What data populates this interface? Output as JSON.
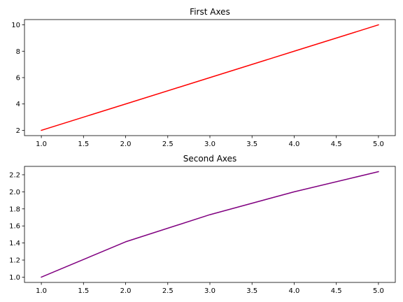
{
  "chart_data": [
    {
      "type": "line",
      "title": "First Axes",
      "xlabel": "",
      "ylabel": "",
      "xlim": [
        0.8,
        5.2
      ],
      "ylim": [
        1.6,
        10.4
      ],
      "xticks": [
        1.0,
        1.5,
        2.0,
        2.5,
        3.0,
        3.5,
        4.0,
        4.5,
        5.0
      ],
      "xtick_labels": [
        "1.0",
        "1.5",
        "2.0",
        "2.5",
        "3.0",
        "3.5",
        "4.0",
        "4.5",
        "5.0"
      ],
      "yticks": [
        2,
        4,
        6,
        8,
        10
      ],
      "ytick_labels": [
        "2",
        "4",
        "6",
        "8",
        "10"
      ],
      "grid": false,
      "series": [
        {
          "color": "#ff0000",
          "x": [
            1,
            2,
            3,
            4,
            5
          ],
          "y": [
            2,
            4,
            6,
            8,
            10
          ]
        }
      ]
    },
    {
      "type": "line",
      "title": "Second Axes",
      "xlabel": "",
      "ylabel": "",
      "xlim": [
        0.8,
        5.2
      ],
      "ylim": [
        0.938,
        2.298
      ],
      "xticks": [
        1.0,
        1.5,
        2.0,
        2.5,
        3.0,
        3.5,
        4.0,
        4.5,
        5.0
      ],
      "xtick_labels": [
        "1.0",
        "1.5",
        "2.0",
        "2.5",
        "3.0",
        "3.5",
        "4.0",
        "4.5",
        "5.0"
      ],
      "yticks": [
        1.0,
        1.2,
        1.4,
        1.6,
        1.8,
        2.0,
        2.2
      ],
      "ytick_labels": [
        "1.0",
        "1.2",
        "1.4",
        "1.6",
        "1.8",
        "2.0",
        "2.2"
      ],
      "grid": false,
      "series": [
        {
          "color": "#800080",
          "x": [
            1,
            2,
            3,
            4,
            5
          ],
          "y": [
            1.0,
            1.414,
            1.732,
            2.0,
            2.236
          ]
        }
      ]
    }
  ]
}
